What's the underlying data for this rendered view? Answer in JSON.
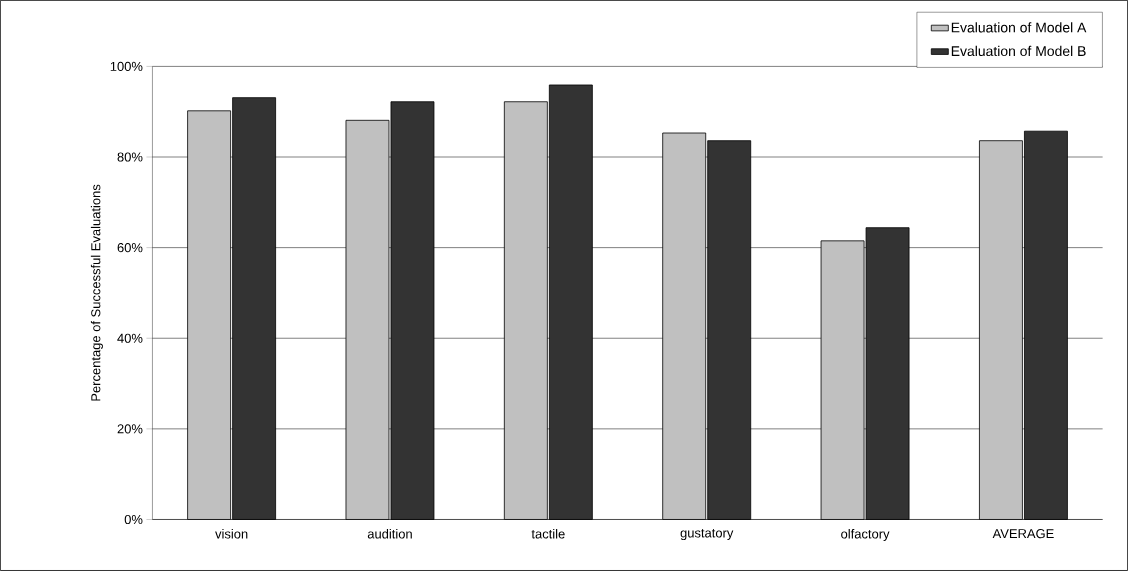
{
  "chart_data": {
    "type": "bar",
    "ylabel": "Percentage of Successful Evaluations",
    "categories": [
      "vision",
      "audition",
      "tactile",
      "gustatory",
      "olfactory",
      "AVERAGE"
    ],
    "series": [
      {
        "name": "Evaluation of Model A",
        "color": "#c0c0c0",
        "values": [
          90.2,
          88.1,
          92.2,
          85.3,
          61.5,
          83.6
        ]
      },
      {
        "name": "Evaluation of Model B",
        "color": "#333333",
        "values": [
          93.1,
          92.2,
          95.9,
          83.6,
          64.4,
          85.7
        ]
      }
    ],
    "ylim": [
      0,
      100
    ],
    "yticks": [
      {
        "value": 0,
        "label": "0%"
      },
      {
        "value": 20,
        "label": "20%"
      },
      {
        "value": 40,
        "label": "40%"
      },
      {
        "value": 60,
        "label": "60%"
      },
      {
        "value": 80,
        "label": "80%"
      },
      {
        "value": 100,
        "label": "100%"
      }
    ],
    "grid": "y",
    "legend": "top right"
  }
}
